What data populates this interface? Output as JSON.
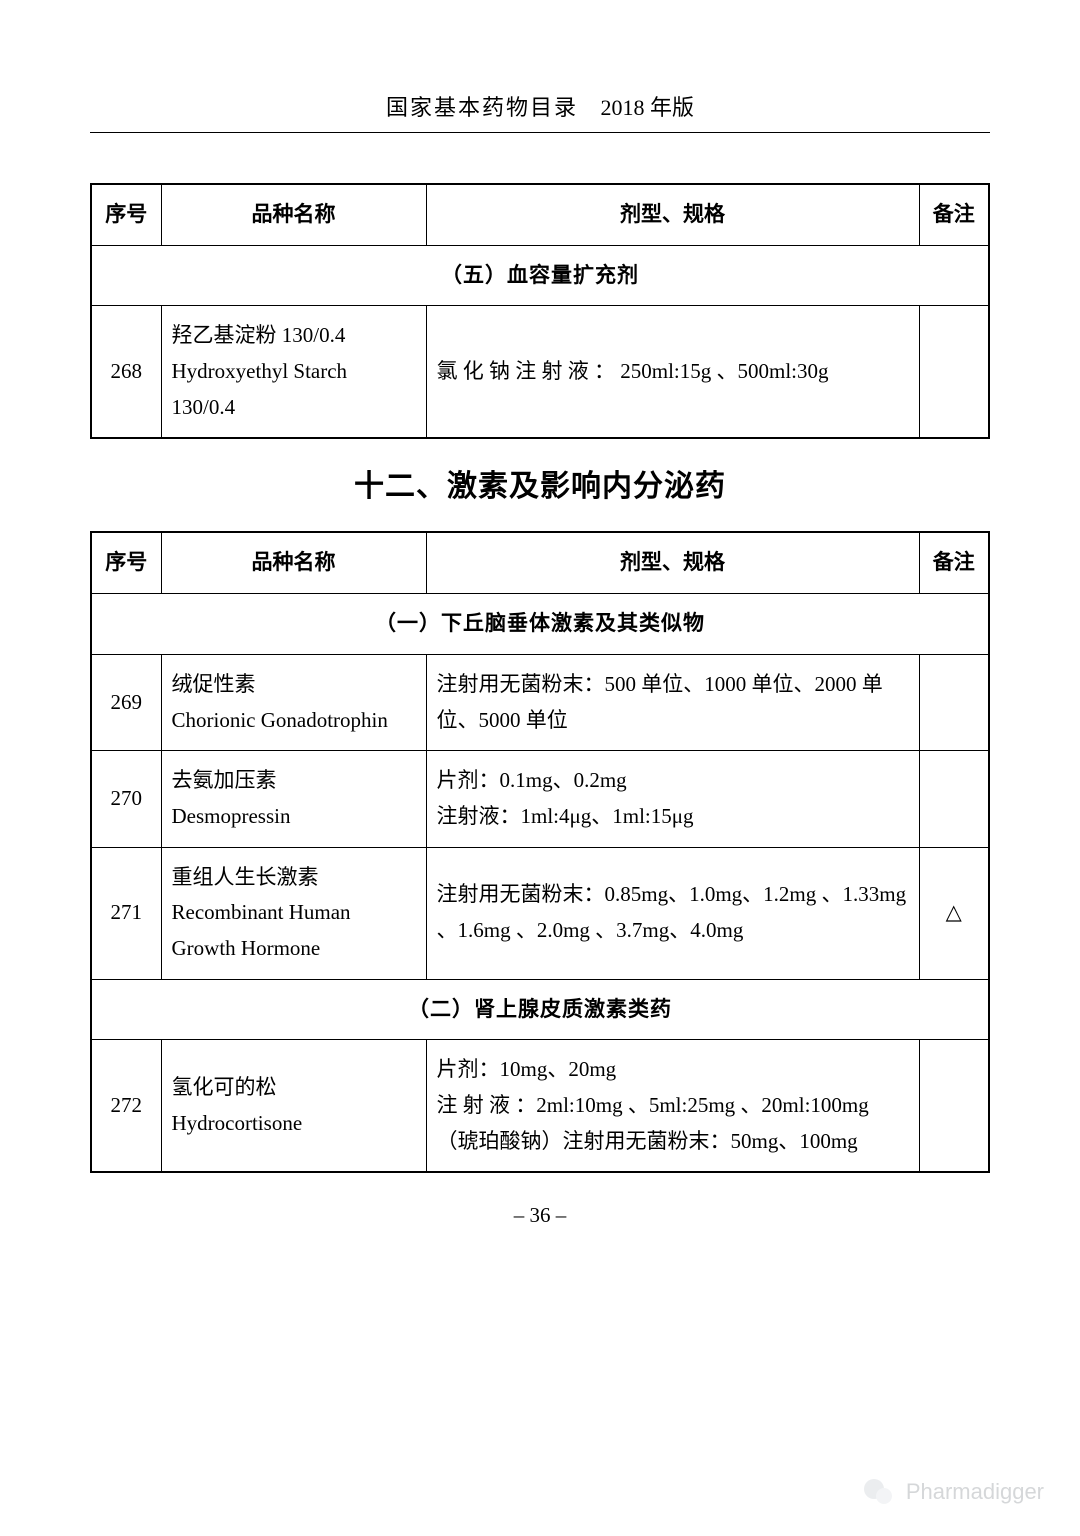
{
  "header": {
    "title": "国家基本药物目录",
    "year": "2018 年版"
  },
  "columns": {
    "idx": "序号",
    "name": "品种名称",
    "spec": "剂型、规格",
    "note": "备注"
  },
  "table1": {
    "section": "（五）血容量扩充剂",
    "rows": [
      {
        "idx": "268",
        "name": "羟乙基淀粉 130/0.4\nHydroxyethyl Starch 130/0.4",
        "spec": "氯 化 钠 注 射 液 ： 250ml:15g 、500ml:30g",
        "note": ""
      }
    ]
  },
  "chapter": "十二、激素及影响内分泌药",
  "table2": {
    "section1": "（一）下丘脑垂体激素及其类似物",
    "section2": "（二）肾上腺皮质激素类药",
    "rows1": [
      {
        "idx": "269",
        "name": "绒促性素\nChorionic Gonadotrophin",
        "spec": "注射用无菌粉末：500 单位、1000 单位、2000 单位、5000 单位",
        "note": ""
      },
      {
        "idx": "270",
        "name": "去氨加压素\nDesmopressin",
        "spec": "片剂：0.1mg、0.2mg\n注射液：1ml:4μg、1ml:15μg",
        "note": ""
      },
      {
        "idx": "271",
        "name": "重组人生长激素\nRecombinant Human Growth Hormone",
        "spec": "注射用无菌粉末：0.85mg、1.0mg、1.2mg 、1.33mg 、1.6mg 、2.0mg 、3.7mg、4.0mg",
        "note": "△"
      }
    ],
    "rows2": [
      {
        "idx": "272",
        "name": "氢化可的松\nHydrocortisone",
        "spec": "片剂：10mg、20mg\n注 射 液 ：2ml:10mg 、5ml:25mg 、20ml:100mg\n（琥珀酸钠）注射用无菌粉末：50mg、100mg",
        "note": ""
      }
    ]
  },
  "footer": {
    "page": "– 36 –"
  },
  "watermark": {
    "text": "Pharmadigger"
  }
}
